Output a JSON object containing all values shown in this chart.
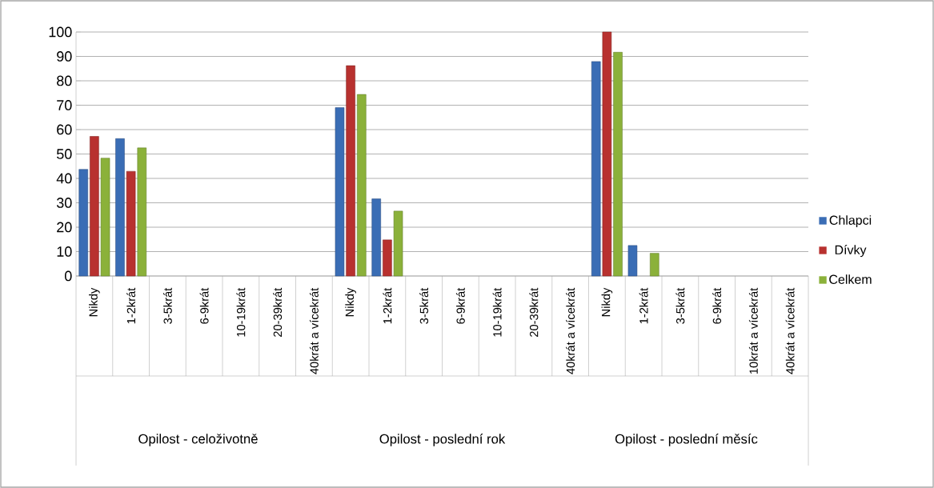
{
  "chart_data": {
    "type": "bar",
    "categories": [
      "Nikdy",
      "1-2krát",
      "3-5krát",
      "6-9krát",
      "10-19krát",
      "20-39krát",
      "40krát a vícekrát",
      "Nikdy",
      "1-2krát",
      "3-5krát",
      "6-9krát",
      "10-19krát",
      "20-39krát",
      "40krát a vícekrát",
      "Nikdy",
      "1-2krát",
      "3-5krát",
      "6-9krát",
      "10krát a vícekrát",
      "40krát a vícekrát"
    ],
    "series": [
      {
        "name": "Chlapci",
        "color": "#3a6db5",
        "values": [
          43.7,
          56.3,
          null,
          null,
          null,
          null,
          null,
          69,
          31.6,
          null,
          null,
          null,
          null,
          null,
          87.9,
          12.5,
          null,
          null,
          null,
          null
        ]
      },
      {
        "name": "Dívky",
        "color": "#b8312f",
        "values": [
          57.2,
          42.9,
          null,
          null,
          null,
          null,
          null,
          86.2,
          14.8,
          null,
          null,
          null,
          null,
          null,
          100,
          null,
          null,
          null,
          null,
          null
        ]
      },
      {
        "name": "Celkem",
        "color": "#8bb13a",
        "values": [
          48.3,
          52.5,
          null,
          null,
          null,
          null,
          null,
          74.4,
          26.6,
          null,
          null,
          null,
          null,
          null,
          91.7,
          9.3,
          null,
          null,
          null,
          null
        ]
      }
    ],
    "ylim": [
      0,
      100
    ],
    "yticks": [
      0,
      10,
      20,
      30,
      40,
      50,
      60,
      70,
      80,
      90,
      100
    ],
    "grid": "y",
    "legend": "right",
    "annotations": [
      "Opilost - celoživotně",
      "Opilost - poslední rok",
      "Opilost - poslední měsíc"
    ]
  }
}
